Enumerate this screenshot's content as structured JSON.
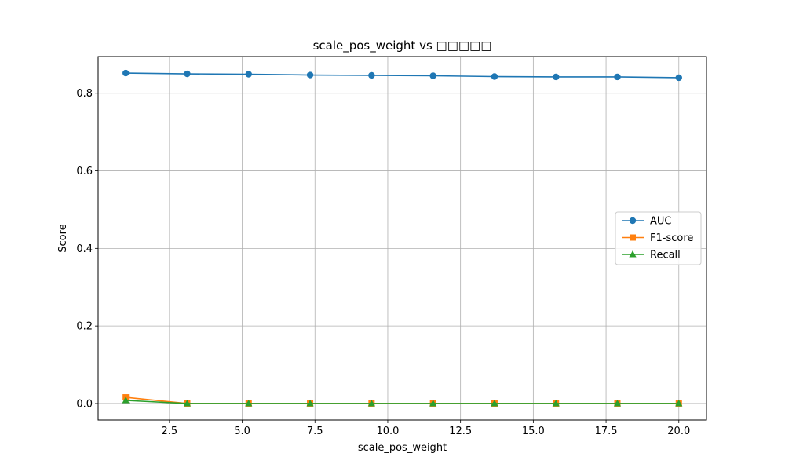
{
  "chart_data": {
    "type": "line",
    "title": "scale_pos_weight vs □□□□□",
    "xlabel": "scale_pos_weight",
    "ylabel": "Score",
    "xlim": [
      0.05,
      20.95
    ],
    "ylim": [
      -0.0426,
      0.8946
    ],
    "xticks": [
      2.5,
      5.0,
      7.5,
      10.0,
      12.5,
      15.0,
      17.5,
      20.0
    ],
    "xtick_labels": [
      "2.5",
      "5.0",
      "7.5",
      "10.0",
      "12.5",
      "15.0",
      "17.5",
      "20.0"
    ],
    "yticks": [
      0.0,
      0.2,
      0.4,
      0.6,
      0.8
    ],
    "ytick_labels": [
      "0.0",
      "0.2",
      "0.4",
      "0.6",
      "0.8"
    ],
    "grid": true,
    "legend_position": "center-right",
    "x": [
      1.0,
      3.111,
      5.222,
      7.333,
      9.444,
      11.556,
      13.667,
      15.778,
      17.889,
      20.0
    ],
    "series": [
      {
        "name": "AUC",
        "color": "#1f77b4",
        "marker": "circle",
        "values": [
          0.852,
          0.85,
          0.849,
          0.847,
          0.846,
          0.845,
          0.843,
          0.842,
          0.842,
          0.84
        ]
      },
      {
        "name": "F1-score",
        "color": "#ff7f0e",
        "marker": "square",
        "values": [
          0.016,
          0.0,
          0.0,
          0.0,
          0.0,
          0.0,
          0.0,
          0.0,
          0.0,
          0.0
        ]
      },
      {
        "name": "Recall",
        "color": "#2ca02c",
        "marker": "triangle",
        "values": [
          0.008,
          0.0,
          0.0,
          0.0,
          0.0,
          0.0,
          0.0,
          0.0,
          0.0,
          0.0
        ]
      }
    ]
  }
}
